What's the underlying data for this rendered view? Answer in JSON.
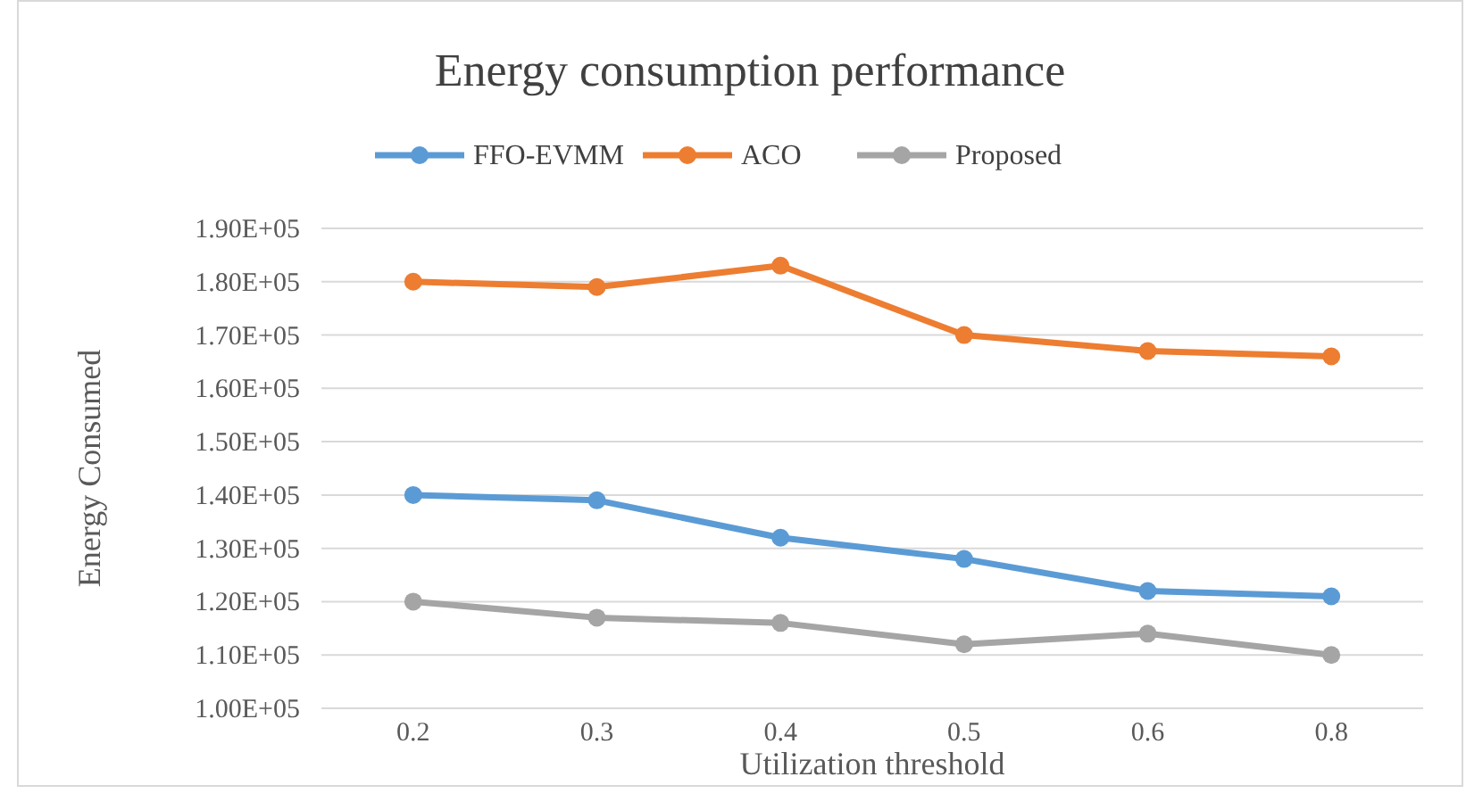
{
  "chart_data": {
    "type": "line",
    "title": "Energy  consumption performance",
    "xlabel": "Utilization threshold",
    "ylabel": "Energy Consumed",
    "categories": [
      "0.2",
      "0.3",
      "0.4",
      "0.5",
      "0.6",
      "0.8"
    ],
    "series": [
      {
        "name": "FFO-EVMM",
        "color": "#5b9bd5",
        "values": [
          140000,
          139000,
          132000,
          128000,
          122000,
          121000
        ]
      },
      {
        "name": "ACO",
        "color": "#ed7d31",
        "values": [
          180000,
          179000,
          183000,
          170000,
          167000,
          166000
        ]
      },
      {
        "name": "Proposed",
        "color": "#a5a5a5",
        "values": [
          120000,
          117000,
          116000,
          112000,
          114000,
          110000
        ]
      }
    ],
    "ylim": [
      100000,
      190000
    ],
    "yticks": [
      {
        "value": 100000,
        "label": "1.00E+05"
      },
      {
        "value": 110000,
        "label": "1.10E+05"
      },
      {
        "value": 120000,
        "label": "1.20E+05"
      },
      {
        "value": 130000,
        "label": "1.30E+05"
      },
      {
        "value": 140000,
        "label": "1.40E+05"
      },
      {
        "value": 150000,
        "label": "1.50E+05"
      },
      {
        "value": 160000,
        "label": "1.60E+05"
      },
      {
        "value": 170000,
        "label": "1.70E+05"
      },
      {
        "value": 180000,
        "label": "1.80E+05"
      },
      {
        "value": 190000,
        "label": "1.90E+05"
      }
    ],
    "grid": "y",
    "legend": "top",
    "marker": "circle",
    "line_style": "solid"
  }
}
